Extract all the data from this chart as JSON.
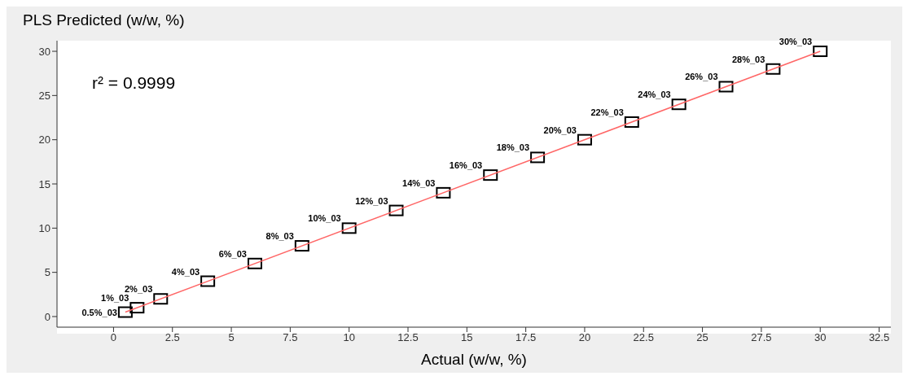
{
  "chart_data": {
    "type": "scatter",
    "xlabel": "Actual (w/w, %)",
    "ylabel": "PLS Predicted (w/w, %)",
    "annotations": [
      "r² = 0.9999"
    ],
    "xlim": [
      -2.4,
      33
    ],
    "xticks": [
      0,
      2.5,
      5,
      7.5,
      10,
      12.5,
      15,
      17.5,
      20,
      22.5,
      25,
      27.5,
      30,
      32.5
    ],
    "ylim": [
      -1.2,
      31.2
    ],
    "yticks": [
      0,
      5,
      10,
      15,
      20,
      25,
      30
    ],
    "grid": false,
    "marker": "square",
    "series": [
      {
        "color": "#000000",
        "x": [
          0.5,
          1,
          2,
          4,
          6,
          8,
          10,
          12,
          14,
          16,
          18,
          20,
          22,
          24,
          26,
          28,
          30
        ],
        "values": [
          0.5,
          1,
          2,
          4,
          6,
          8,
          10,
          12,
          14,
          16,
          18,
          20,
          22,
          24,
          26,
          28,
          30
        ],
        "value_labels": [
          "0.5%_03",
          "1%_03",
          "2%_03",
          "4%_03",
          "6%_03",
          "8%_03",
          "10%_03",
          "12%_03",
          "14%_03",
          "16%_03",
          "18%_03",
          "20%_03",
          "22%_03",
          "24%_03",
          "26%_03",
          "28%_03",
          "30%_03"
        ]
      },
      {
        "type": "line",
        "color": "#ff6666",
        "marker": "none",
        "x": [
          0.5,
          30
        ],
        "values": [
          0.5,
          30
        ]
      }
    ]
  }
}
